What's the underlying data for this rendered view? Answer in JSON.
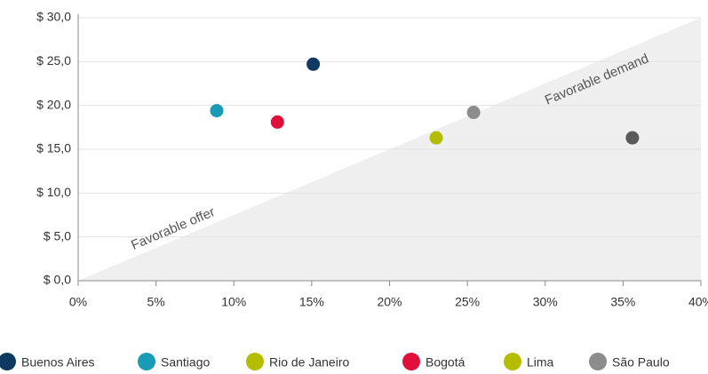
{
  "chart_data": {
    "type": "scatter",
    "annotations": [
      "Favorable offer",
      "Favorable demand"
    ],
    "xlim": [
      0,
      40
    ],
    "xticks": [
      {
        "value": 0,
        "label": "0%"
      },
      {
        "value": 5,
        "label": "5%"
      },
      {
        "value": 10,
        "label": "10%"
      },
      {
        "value": 15,
        "label": "15%"
      },
      {
        "value": 20,
        "label": "20%"
      },
      {
        "value": 25,
        "label": "25%"
      },
      {
        "value": 30,
        "label": "30%"
      },
      {
        "value": 35,
        "label": "35%"
      },
      {
        "value": 40,
        "label": "40%"
      }
    ],
    "ylim": [
      0,
      30
    ],
    "yticks": [
      {
        "value": 0,
        "label": "$ 0,0"
      },
      {
        "value": 5,
        "label": "$ 5,0"
      },
      {
        "value": 10,
        "label": "$ 10,0"
      },
      {
        "value": 15,
        "label": "$ 15,0"
      },
      {
        "value": 20,
        "label": "$ 20,0"
      },
      {
        "value": 25,
        "label": "$ 25,0"
      },
      {
        "value": 30,
        "label": "$ 30,0"
      }
    ],
    "grid": true,
    "series": [
      {
        "name": "Buenos Aires",
        "color": "#0e3a62",
        "marker_color": "#0e3a62",
        "x": [
          15.1
        ],
        "values": [
          24.7
        ]
      },
      {
        "name": "Santiago",
        "color": "#1a9bb5",
        "marker_color": "#1a9bb5",
        "x": [
          8.9
        ],
        "values": [
          19.4
        ]
      },
      {
        "name": "Rio de Janeiro",
        "color": "#b5bd00",
        "marker_color": "#b5bd00",
        "x": [
          23.0
        ],
        "values": [
          16.3
        ]
      },
      {
        "name": "Bogotá",
        "color": "#e0103a",
        "marker_color": "#e0103a",
        "x": [
          12.8
        ],
        "values": [
          18.1
        ]
      },
      {
        "name": "Lima",
        "color": "#b5bd00",
        "marker_color": "#5a5a5a",
        "x": [
          35.6
        ],
        "values": [
          16.3
        ]
      },
      {
        "name": "São Paulo",
        "color": "#8c8c8c",
        "marker_color": "#8c8c8c",
        "x": [
          25.4
        ],
        "values": [
          19.2
        ]
      }
    ]
  }
}
